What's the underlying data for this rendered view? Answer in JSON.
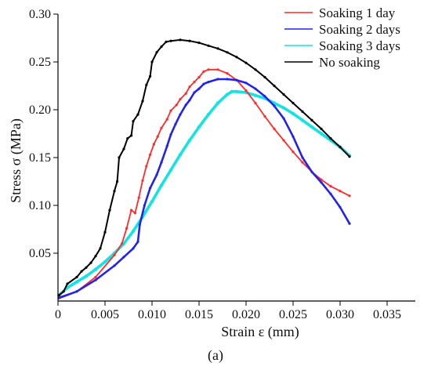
{
  "caption": "(a)",
  "chart_data": {
    "type": "line",
    "title": "",
    "xlabel": "Strain ε (mm)",
    "ylabel": "Stress σ  (MPa)",
    "xlim": [
      0,
      0.038
    ],
    "ylim": [
      0,
      0.3
    ],
    "xticks": [
      0,
      0.005,
      0.01,
      0.015,
      0.02,
      0.025,
      0.03,
      0.035
    ],
    "xtick_labels": [
      "0",
      "0.005",
      "0.010",
      "0.015",
      "0.020",
      "0.025",
      "0.030",
      "0.035"
    ],
    "yticks": [
      0.05,
      0.1,
      0.15,
      0.2,
      0.25,
      0.3
    ],
    "ytick_labels": [
      "0.05",
      "0.10",
      "0.15",
      "0.20",
      "0.25",
      "0.30"
    ],
    "grid": false,
    "legend_position": "top-right",
    "series": [
      {
        "name": "Soaking 1 day",
        "color": "#ff2a2a",
        "points": [
          [
            0.0001,
            0.004
          ],
          [
            0.002,
            0.01
          ],
          [
            0.004,
            0.025
          ],
          [
            0.006,
            0.048
          ],
          [
            0.0068,
            0.06
          ],
          [
            0.0073,
            0.076
          ],
          [
            0.0078,
            0.095
          ],
          [
            0.0082,
            0.092
          ],
          [
            0.0086,
            0.108
          ],
          [
            0.009,
            0.126
          ],
          [
            0.0094,
            0.141
          ],
          [
            0.0098,
            0.153
          ],
          [
            0.0102,
            0.164
          ],
          [
            0.0106,
            0.172
          ],
          [
            0.011,
            0.181
          ],
          [
            0.0116,
            0.19
          ],
          [
            0.012,
            0.199
          ],
          [
            0.0126,
            0.205
          ],
          [
            0.013,
            0.211
          ],
          [
            0.0136,
            0.217
          ],
          [
            0.014,
            0.224
          ],
          [
            0.0145,
            0.229
          ],
          [
            0.015,
            0.234
          ],
          [
            0.0155,
            0.24
          ],
          [
            0.016,
            0.242
          ],
          [
            0.017,
            0.242
          ],
          [
            0.018,
            0.238
          ],
          [
            0.019,
            0.231
          ],
          [
            0.02,
            0.22
          ],
          [
            0.021,
            0.207
          ],
          [
            0.022,
            0.193
          ],
          [
            0.023,
            0.18
          ],
          [
            0.024,
            0.168
          ],
          [
            0.025,
            0.156
          ],
          [
            0.026,
            0.145
          ],
          [
            0.027,
            0.135
          ],
          [
            0.028,
            0.127
          ],
          [
            0.029,
            0.12
          ],
          [
            0.03,
            0.115
          ],
          [
            0.031,
            0.11
          ]
        ]
      },
      {
        "name": "Soaking 2 days",
        "color": "#2222ee",
        "points": [
          [
            0.0001,
            0.003
          ],
          [
            0.002,
            0.01
          ],
          [
            0.004,
            0.022
          ],
          [
            0.006,
            0.037
          ],
          [
            0.007,
            0.046
          ],
          [
            0.008,
            0.055
          ],
          [
            0.0085,
            0.062
          ],
          [
            0.0087,
            0.08
          ],
          [
            0.0092,
            0.1
          ],
          [
            0.0098,
            0.118
          ],
          [
            0.0105,
            0.132
          ],
          [
            0.011,
            0.145
          ],
          [
            0.0116,
            0.162
          ],
          [
            0.012,
            0.174
          ],
          [
            0.0125,
            0.185
          ],
          [
            0.013,
            0.195
          ],
          [
            0.0136,
            0.205
          ],
          [
            0.014,
            0.21
          ],
          [
            0.0145,
            0.218
          ],
          [
            0.015,
            0.222
          ],
          [
            0.0155,
            0.227
          ],
          [
            0.016,
            0.229
          ],
          [
            0.017,
            0.232
          ],
          [
            0.018,
            0.232
          ],
          [
            0.019,
            0.231
          ],
          [
            0.02,
            0.228
          ],
          [
            0.021,
            0.222
          ],
          [
            0.022,
            0.214
          ],
          [
            0.023,
            0.204
          ],
          [
            0.024,
            0.191
          ],
          [
            0.025,
            0.172
          ],
          [
            0.026,
            0.15
          ],
          [
            0.027,
            0.135
          ],
          [
            0.028,
            0.124
          ],
          [
            0.029,
            0.112
          ],
          [
            0.03,
            0.098
          ],
          [
            0.031,
            0.081
          ]
        ]
      },
      {
        "name": "Soaking 3 days",
        "color": "#14e3e3",
        "points": [
          [
            0.0001,
            0.006
          ],
          [
            0.001,
            0.014
          ],
          [
            0.002,
            0.02
          ],
          [
            0.003,
            0.026
          ],
          [
            0.004,
            0.033
          ],
          [
            0.005,
            0.041
          ],
          [
            0.006,
            0.05
          ],
          [
            0.007,
            0.06
          ],
          [
            0.008,
            0.073
          ],
          [
            0.009,
            0.088
          ],
          [
            0.01,
            0.104
          ],
          [
            0.011,
            0.121
          ],
          [
            0.012,
            0.137
          ],
          [
            0.013,
            0.153
          ],
          [
            0.014,
            0.168
          ],
          [
            0.015,
            0.182
          ],
          [
            0.016,
            0.195
          ],
          [
            0.017,
            0.207
          ],
          [
            0.018,
            0.216
          ],
          [
            0.0185,
            0.219
          ],
          [
            0.019,
            0.219
          ],
          [
            0.02,
            0.218
          ],
          [
            0.021,
            0.215
          ],
          [
            0.022,
            0.212
          ],
          [
            0.023,
            0.207
          ],
          [
            0.024,
            0.202
          ],
          [
            0.025,
            0.196
          ],
          [
            0.026,
            0.189
          ],
          [
            0.027,
            0.182
          ],
          [
            0.028,
            0.175
          ],
          [
            0.029,
            0.168
          ],
          [
            0.03,
            0.161
          ],
          [
            0.031,
            0.152
          ]
        ]
      },
      {
        "name": "No soaking",
        "color": "#000000",
        "points": [
          [
            0.0001,
            0.006
          ],
          [
            0.0006,
            0.01
          ],
          [
            0.001,
            0.018
          ],
          [
            0.002,
            0.025
          ],
          [
            0.0025,
            0.031
          ],
          [
            0.003,
            0.035
          ],
          [
            0.0035,
            0.04
          ],
          [
            0.004,
            0.047
          ],
          [
            0.0045,
            0.055
          ],
          [
            0.005,
            0.072
          ],
          [
            0.0055,
            0.095
          ],
          [
            0.006,
            0.115
          ],
          [
            0.0063,
            0.125
          ],
          [
            0.0065,
            0.15
          ],
          [
            0.007,
            0.159
          ],
          [
            0.0074,
            0.17
          ],
          [
            0.0078,
            0.173
          ],
          [
            0.008,
            0.188
          ],
          [
            0.0085,
            0.195
          ],
          [
            0.009,
            0.209
          ],
          [
            0.0094,
            0.226
          ],
          [
            0.0098,
            0.235
          ],
          [
            0.01,
            0.25
          ],
          [
            0.0105,
            0.26
          ],
          [
            0.011,
            0.266
          ],
          [
            0.0115,
            0.271
          ],
          [
            0.012,
            0.272
          ],
          [
            0.013,
            0.273
          ],
          [
            0.014,
            0.272
          ],
          [
            0.015,
            0.27
          ],
          [
            0.016,
            0.267
          ],
          [
            0.017,
            0.264
          ],
          [
            0.018,
            0.26
          ],
          [
            0.019,
            0.255
          ],
          [
            0.02,
            0.249
          ],
          [
            0.021,
            0.242
          ],
          [
            0.022,
            0.234
          ],
          [
            0.023,
            0.225
          ],
          [
            0.024,
            0.216
          ],
          [
            0.025,
            0.207
          ],
          [
            0.026,
            0.198
          ],
          [
            0.027,
            0.189
          ],
          [
            0.028,
            0.18
          ],
          [
            0.029,
            0.17
          ],
          [
            0.03,
            0.161
          ],
          [
            0.031,
            0.151
          ]
        ]
      }
    ]
  }
}
